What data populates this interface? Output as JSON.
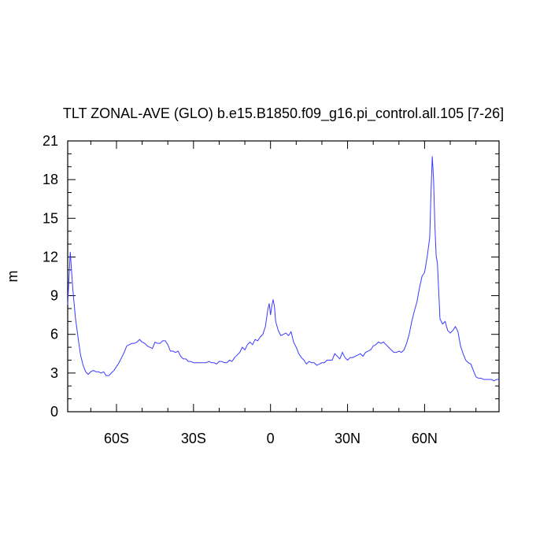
{
  "chart_data": {
    "type": "line",
    "title": "TLT ZONAL-AVE (GLO) b.e15.B1850.f09_g16.pi_control.all.105 [7-26]",
    "y_label": "m",
    "xlim": [
      -79,
      89
    ],
    "ylim": [
      0,
      21
    ],
    "xticks": [
      {
        "value": -60,
        "label": "60S"
      },
      {
        "value": -30,
        "label": "30S"
      },
      0,
      {
        "value": 30,
        "label": "30N"
      },
      {
        "value": 60,
        "label": "60N"
      }
    ],
    "xminorticks": [
      -70,
      -50,
      -40,
      -20,
      -10,
      10,
      20,
      40,
      50,
      70,
      80
    ],
    "yticks": [
      0,
      3,
      6,
      9,
      12,
      15,
      18,
      21
    ],
    "yminorticks": [
      1,
      2,
      4,
      5,
      7,
      8,
      10,
      11,
      13,
      14,
      16,
      17,
      19,
      20
    ],
    "grid": false,
    "series": [
      {
        "color": "#3a3aff",
        "x": [
          -79,
          -78,
          -77,
          -76,
          -75,
          -74,
          -73,
          -72,
          -71,
          -70,
          -69,
          -68,
          -67,
          -66,
          -65,
          -64,
          -63,
          -62,
          -61,
          -60,
          -59,
          -58,
          -57,
          -56,
          -55,
          -54,
          -53,
          -52,
          -51,
          -50,
          -49,
          -48,
          -47,
          -46,
          -45,
          -44,
          -43,
          -42,
          -41,
          -40,
          -39,
          -38,
          -37,
          -36,
          -35,
          -34,
          -33,
          -32,
          -31,
          -30,
          -29,
          -28,
          -27,
          -26,
          -25,
          -24,
          -23,
          -22,
          -21,
          -20,
          -19,
          -18,
          -17,
          -16,
          -15,
          -14,
          -13,
          -12,
          -11,
          -10,
          -9,
          -8,
          -7,
          -6,
          -5,
          -4,
          -3,
          -2,
          -1,
          -0.5,
          0,
          0.5,
          1,
          1.5,
          2,
          3,
          4,
          5,
          6,
          7,
          8,
          9,
          10,
          11,
          12,
          13,
          14,
          15,
          16,
          17,
          18,
          19,
          20,
          21,
          22,
          23,
          24,
          25,
          26,
          27,
          28,
          29,
          30,
          31,
          32,
          33,
          34,
          35,
          36,
          37,
          38,
          39,
          40,
          41,
          42,
          43,
          44,
          45,
          46,
          47,
          48,
          49,
          50,
          51,
          52,
          53,
          54,
          55,
          56,
          57,
          58,
          59,
          60,
          61,
          62,
          62.5,
          63,
          63.5,
          64,
          64.5,
          65,
          66,
          67,
          68,
          69,
          70,
          71,
          72,
          73,
          74,
          75,
          76,
          77,
          78,
          79,
          80,
          81,
          82,
          83,
          84,
          85,
          86,
          87,
          88,
          89
        ],
        "values": [
          8.3,
          12.4,
          9.5,
          7.3,
          5.8,
          4.4,
          3.6,
          3.1,
          2.9,
          3.1,
          3.2,
          3.1,
          3.1,
          3.0,
          3.1,
          2.8,
          2.8,
          3.0,
          3.2,
          3.5,
          3.8,
          4.2,
          4.6,
          5.1,
          5.2,
          5.3,
          5.3,
          5.4,
          5.6,
          5.4,
          5.3,
          5.1,
          5.0,
          4.9,
          5.4,
          5.3,
          5.3,
          5.5,
          5.5,
          5.2,
          4.7,
          4.7,
          4.6,
          4.7,
          4.3,
          4.1,
          4.1,
          3.9,
          3.9,
          3.8,
          3.8,
          3.8,
          3.8,
          3.8,
          3.8,
          3.9,
          3.8,
          3.8,
          3.7,
          3.9,
          3.9,
          3.8,
          3.8,
          4.0,
          3.9,
          4.2,
          4.4,
          4.6,
          5.0,
          4.8,
          5.2,
          5.4,
          5.2,
          5.6,
          5.5,
          5.8,
          6.0,
          6.6,
          8.0,
          8.4,
          7.5,
          8.2,
          8.7,
          8.2,
          7.0,
          6.3,
          5.9,
          6.0,
          6.1,
          5.9,
          6.2,
          5.4,
          5.0,
          4.5,
          4.2,
          4.0,
          3.7,
          3.9,
          3.8,
          3.8,
          3.6,
          3.7,
          3.8,
          3.8,
          4.0,
          4.0,
          4.0,
          4.5,
          4.3,
          4.1,
          4.6,
          4.2,
          4.0,
          4.2,
          4.2,
          4.3,
          4.4,
          4.5,
          4.3,
          4.6,
          4.7,
          4.8,
          5.1,
          5.2,
          5.4,
          5.3,
          5.4,
          5.2,
          5.0,
          4.8,
          4.6,
          4.6,
          4.7,
          4.6,
          4.8,
          5.3,
          6.0,
          7.0,
          7.8,
          8.5,
          9.6,
          10.5,
          10.8,
          12.0,
          13.5,
          17.0,
          19.8,
          18.0,
          14.5,
          12.1,
          11.5,
          7.2,
          6.8,
          7.0,
          6.3,
          6.1,
          6.3,
          6.6,
          6.2,
          5.1,
          4.5,
          4.0,
          3.8,
          3.7,
          3.2,
          2.7,
          2.6,
          2.6,
          2.5,
          2.5,
          2.5,
          2.5,
          2.4,
          2.5,
          2.5
        ]
      }
    ]
  }
}
